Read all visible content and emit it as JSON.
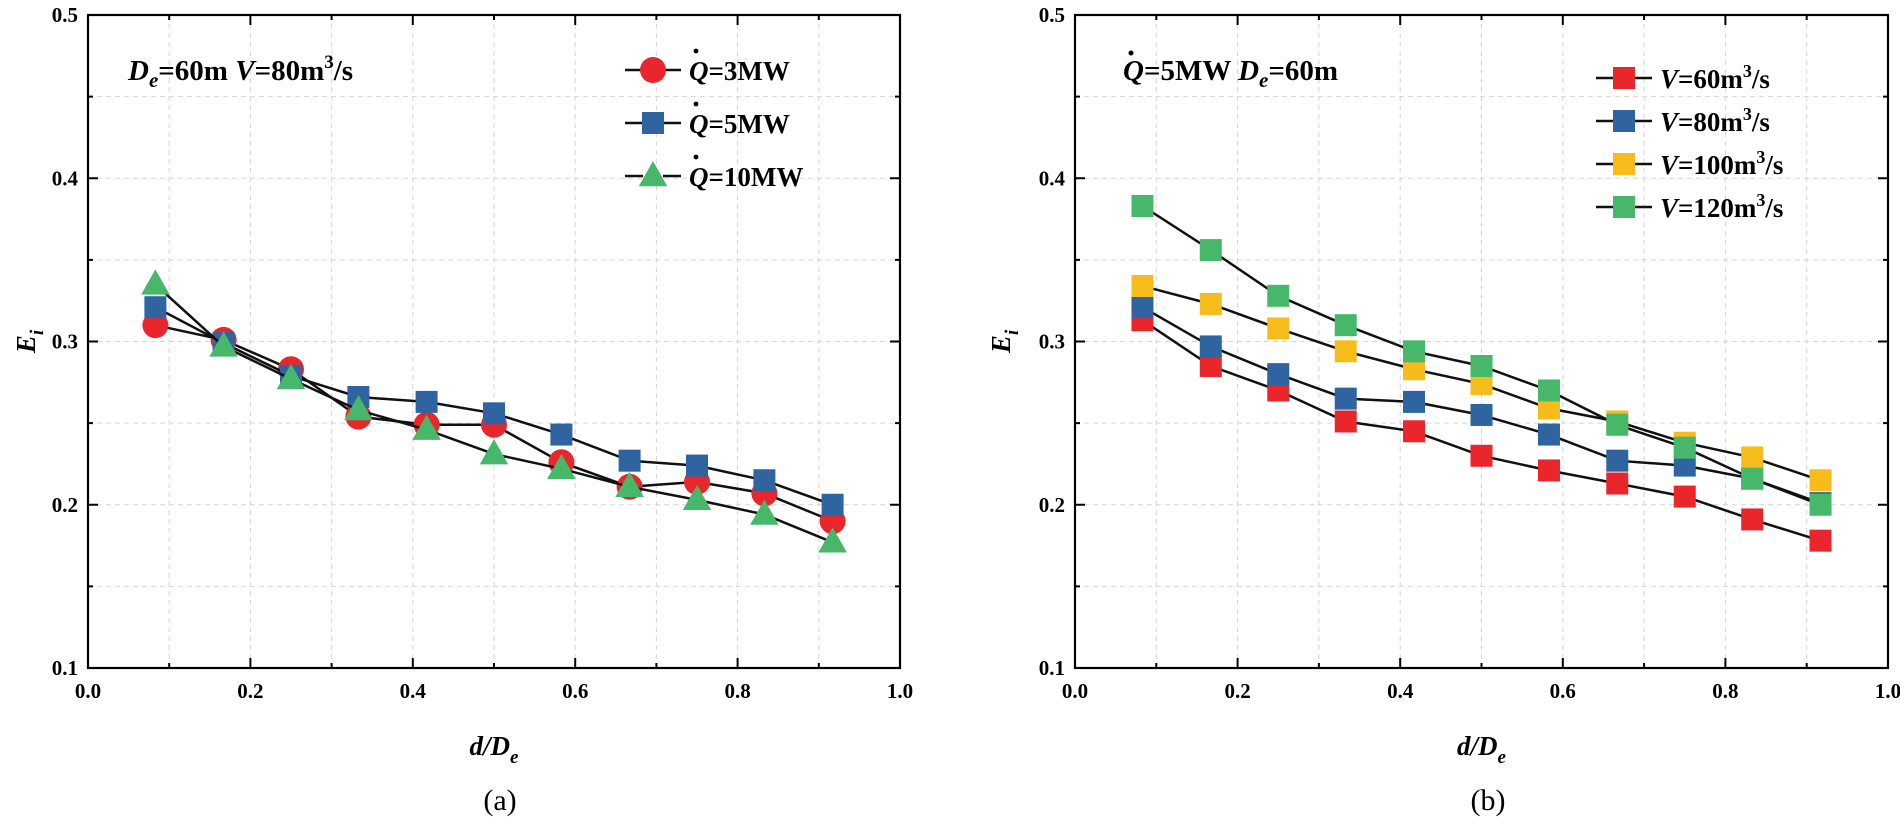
{
  "chart_data": [
    {
      "type": "line",
      "panel_label": "(a)",
      "annotation": {
        "parts": [
          "D",
          "e",
          "=60m ",
          "V",
          "=80m",
          "3",
          "/s"
        ]
      },
      "xlabel": {
        "main": "d/D",
        "sub": "e"
      },
      "ylabel": {
        "main": "E",
        "sub": "i"
      },
      "xlim": [
        0.0,
        1.0
      ],
      "ylim": [
        0.1,
        0.5
      ],
      "xticks": [
        "0.0",
        "0.2",
        "0.4",
        "0.6",
        "0.8",
        "1.0"
      ],
      "yticks": [
        "0.1",
        "0.2",
        "0.3",
        "0.4",
        "0.5"
      ],
      "grid": true,
      "legend_position": "top-right",
      "x": [
        0.083,
        0.167,
        0.25,
        0.333,
        0.417,
        0.5,
        0.583,
        0.667,
        0.75,
        0.833,
        0.917
      ],
      "series": [
        {
          "name": "3MW",
          "name_prefix": "Q",
          "name_mid": "=",
          "marker": "circle",
          "color": "#e8262c",
          "values": [
            0.31,
            0.301,
            0.283,
            0.254,
            0.249,
            0.249,
            0.226,
            0.211,
            0.214,
            0.207,
            0.19
          ]
        },
        {
          "name": "5MW",
          "name_prefix": "Q",
          "name_mid": "=",
          "marker": "square",
          "color": "#2f64a0",
          "values": [
            0.321,
            0.299,
            0.279,
            0.266,
            0.263,
            0.256,
            0.243,
            0.227,
            0.224,
            0.215,
            0.2
          ]
        },
        {
          "name": "10MW",
          "name_prefix": "Q",
          "name_mid": "=",
          "marker": "triangle",
          "color": "#47b86a",
          "values": [
            0.335,
            0.297,
            0.277,
            0.258,
            0.246,
            0.231,
            0.222,
            0.211,
            0.203,
            0.194,
            0.177
          ]
        }
      ]
    },
    {
      "type": "line",
      "panel_label": "(b)",
      "annotation": {
        "parts": [
          "Q",
          "=5MW ",
          "D",
          "e",
          "=60m"
        ]
      },
      "xlabel": {
        "main": "d/D",
        "sub": "e"
      },
      "ylabel": {
        "main": "E",
        "sub": "i"
      },
      "xlim": [
        0.0,
        1.0
      ],
      "ylim": [
        0.1,
        0.5
      ],
      "xticks": [
        "0.0",
        "0.2",
        "0.4",
        "0.6",
        "0.8",
        "1.0"
      ],
      "yticks": [
        "0.1",
        "0.2",
        "0.3",
        "0.4",
        "0.5"
      ],
      "grid": true,
      "legend_position": "top-right",
      "x": [
        0.083,
        0.167,
        0.25,
        0.333,
        0.417,
        0.5,
        0.583,
        0.667,
        0.75,
        0.833,
        0.917
      ],
      "series": [
        {
          "name": "60m3/s",
          "name_prefix": "V",
          "name_mid": "=",
          "marker": "square",
          "color": "#e8262c",
          "values": [
            0.313,
            0.285,
            0.27,
            0.251,
            0.245,
            0.23,
            0.221,
            0.213,
            0.205,
            0.191,
            0.178
          ]
        },
        {
          "name": "80m3/s",
          "name_prefix": "V",
          "name_mid": "=",
          "marker": "square",
          "color": "#2f64a0",
          "values": [
            0.321,
            0.297,
            0.28,
            0.265,
            0.263,
            0.255,
            0.243,
            0.227,
            0.224,
            0.216,
            0.201
          ]
        },
        {
          "name": "100m3/s",
          "name_prefix": "V",
          "name_mid": "=",
          "marker": "square",
          "color": "#f6bc1c",
          "values": [
            0.334,
            0.323,
            0.308,
            0.294,
            0.283,
            0.274,
            0.259,
            0.251,
            0.238,
            0.229,
            0.215
          ]
        },
        {
          "name": "120m3/s",
          "name_prefix": "V",
          "name_mid": "=",
          "marker": "square",
          "color": "#47b86a",
          "values": [
            0.383,
            0.356,
            0.328,
            0.31,
            0.294,
            0.285,
            0.27,
            0.249,
            0.235,
            0.216,
            0.2
          ]
        }
      ]
    }
  ]
}
